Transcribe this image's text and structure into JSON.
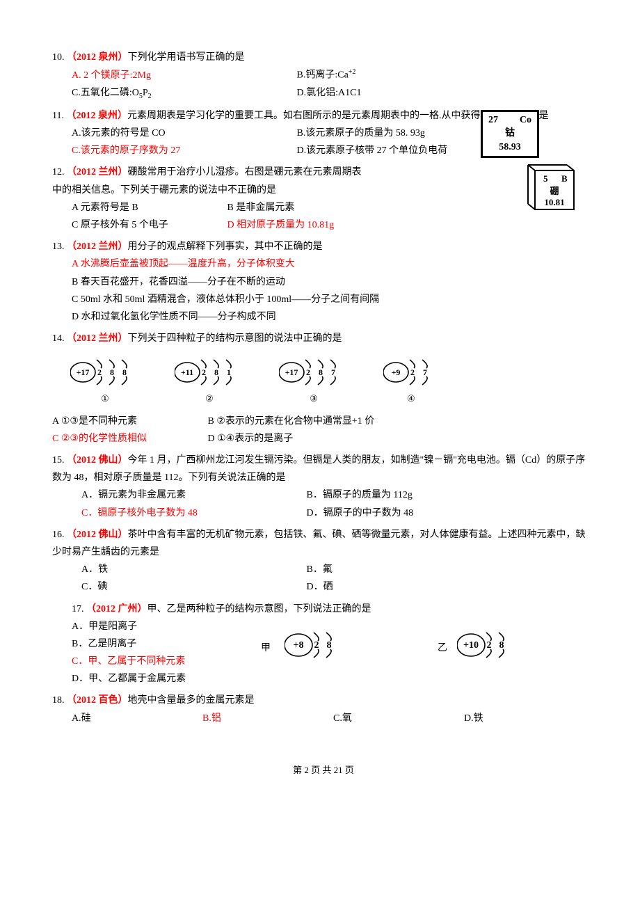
{
  "q10": {
    "num": "10. ",
    "src": "（2012 泉州）",
    "stem": "下列化学用语书写正确的是",
    "a": "A. 2 个镁原子:2Mg",
    "b": "B.钙离子:Ca",
    "b_sup": "+2",
    "c_pre": "C.五氧化二磷:O",
    "c_sub1": "5",
    "c_mid": "P",
    "c_sub2": "2",
    "d": "D.氯化铝:A1C1"
  },
  "q11": {
    "num": "11. ",
    "src": "（2012 泉州）",
    "stem": "元素周期表是学习化学的重要工具。如右图所示的是元素周期表中的一格.从中获得的信息正确的是",
    "a": "A.该元素的符号是 CO",
    "b": "B.该元素原子的质量为 58. 93g",
    "c": "C.该元素的原子序数为 27",
    "d": "D.该元素原子核带 27 个单位负电荷",
    "box_top": "27    Co",
    "box_mid": "钴",
    "box_bot": "58.93"
  },
  "q12": {
    "num": "12. ",
    "src": "（2012 兰州）",
    "stem1": "硼酸常用于治疗小儿湿疹。右图是硼元素在元素周期表",
    "stem2": "中的相关信息。下列关于硼元素的说法中不正确的是",
    "a": "A  元素符号是 B",
    "b": "B  是非金属元素",
    "c": "C  原子核外有 5 个电子",
    "d": "D 相对原子质量为 10.81g",
    "box_top": "5   B",
    "box_mid": "硼",
    "box_bot": "10.81"
  },
  "q13": {
    "num": "13. ",
    "src": "（2012 兰州）",
    "stem": "用分子的观点解释下列事实，其中不正确的是",
    "a": "A  水沸腾后壶盖被顶起——温度升高，分子体积变大",
    "b": "B  春天百花盛开，花香四溢——分子在不断的运动",
    "c": "C 50ml 水和 50ml 酒精混合，液体总体积小于 100ml——分子之间有间隔",
    "d": "D  水和过氧化氢化学性质不同——分子构成不同"
  },
  "q14": {
    "num": "14. ",
    "src": "（2012 兰州）",
    "stem": "下列关于四种粒子的结构示意图的说法中正确的是",
    "atoms": [
      {
        "nucleus": "+17",
        "shells": [
          "2",
          "8",
          "8"
        ],
        "label": "①"
      },
      {
        "nucleus": "+11",
        "shells": [
          "2",
          "8",
          "1"
        ],
        "label": "②"
      },
      {
        "nucleus": "+17",
        "shells": [
          "2",
          "8",
          "7"
        ],
        "label": "③"
      },
      {
        "nucleus": "+9",
        "shells": [
          "2",
          "7"
        ],
        "label": "④"
      }
    ],
    "a": "A ①③是不同种元素",
    "b": "B ②表示的元素在化合物中通常显+1 价",
    "c": "C ②③的化学性质相似",
    "d": "D ①④表示的是离子"
  },
  "q15": {
    "num": "15. ",
    "src": "（2012 佛山）",
    "stem": "今年 1 月，广西柳州龙江河发生镉污染。但镉是人类的朋友，如制造\"镍－镉\"充电电池。镉（Cd）的原子序数为 48，相对原子质量是 112。下列有关说法正确的是",
    "a": "A．镉元素为非金属元素",
    "b": "B．镉原子的质量为 112g",
    "c": "C．镉原子核外电子数为 48",
    "d": "D．镉原子的中子数为 48"
  },
  "q16": {
    "num": "16. ",
    "src": "（2012 佛山）",
    "stem": "茶叶中含有丰富的无机矿物元素，包括铁、氟、碘、硒等微量元素，对人体健康有益。上述四种元素中，缺少时易产生龋齿的元素是",
    "a": "A．铁",
    "b": "B．氟",
    "c": "C．碘",
    "d": "D．硒"
  },
  "q17": {
    "num": "17. ",
    "src": "（2012 广州）",
    "stem": "甲、乙是两种粒子的结构示意图，下列说法正确的是",
    "a": "A．甲是阳离子",
    "b": "B．乙是阴离子",
    "c": "C．甲、乙属于不同种元素",
    "d": "D．甲、乙都属于金属元素",
    "jia_label": "甲",
    "yi_label": "乙",
    "jia": {
      "nucleus": "+8",
      "shells": [
        "2",
        "8"
      ]
    },
    "yi": {
      "nucleus": "+10",
      "shells": [
        "2",
        "8"
      ]
    }
  },
  "q18": {
    "num": "18. ",
    "src": "（2012 百色）",
    "stem": "地壳中含量最多的金属元素是",
    "a": "A.硅",
    "b": "B.铝",
    "c": "C.氧",
    "d": "D.铁"
  },
  "footer": "第 2 页  共 21 页"
}
